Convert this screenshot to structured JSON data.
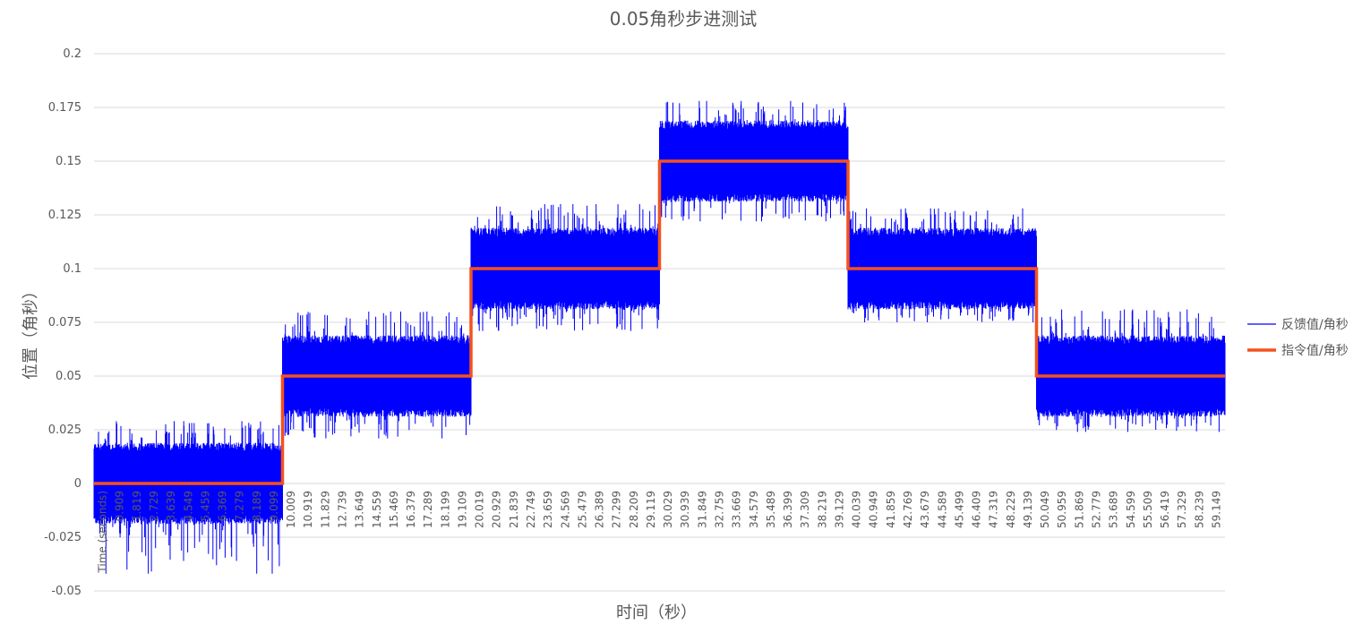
{
  "chart_data": {
    "type": "line",
    "title": "0.05角秒步进测试",
    "xlabel": "时间（秒）",
    "ylabel": "位置（角秒）",
    "ylim": [
      -0.05,
      0.2
    ],
    "yticks": [
      "0.2",
      "0.175",
      "0.15",
      "0.125",
      "0.1",
      "0.075",
      "0.05",
      "0.025",
      "0",
      "-0.025",
      "-0.05"
    ],
    "xlim": [
      0,
      60
    ],
    "xtick_labels": [
      "Time (seconds)",
      "0.909",
      "1.819",
      "2.729",
      "3.639",
      "4.549",
      "5.459",
      "6.369",
      "7.279",
      "8.189",
      "9.099",
      "10.009",
      "10.919",
      "11.829",
      "12.739",
      "13.649",
      "14.559",
      "15.469",
      "16.379",
      "17.289",
      "18.199",
      "19.109",
      "20.019",
      "20.929",
      "21.839",
      "22.749",
      "23.659",
      "24.569",
      "25.479",
      "26.389",
      "27.299",
      "28.209",
      "29.119",
      "30.029",
      "30.939",
      "31.849",
      "32.759",
      "33.669",
      "34.579",
      "35.489",
      "36.399",
      "37.309",
      "38.219",
      "39.129",
      "40.039",
      "40.949",
      "41.859",
      "42.769",
      "43.679",
      "44.589",
      "45.499",
      "46.409",
      "47.319",
      "48.229",
      "49.139",
      "50.049",
      "50.959",
      "51.869",
      "52.779",
      "53.689",
      "54.599",
      "55.509",
      "56.419",
      "57.329",
      "58.239",
      "59.149"
    ],
    "grid": true,
    "legend_position": "right",
    "series": [
      {
        "name": "反馈值/角秒",
        "color": "#0000ff",
        "kind": "noisy_step",
        "segments": [
          {
            "x0": 0,
            "x1": 10,
            "mean": 0.0,
            "band_low": -0.017,
            "band_high": 0.017,
            "spike_low": -0.042,
            "spike_high": 0.029
          },
          {
            "x0": 10,
            "x1": 20,
            "mean": 0.05,
            "band_low": 0.033,
            "band_high": 0.067,
            "spike_low": 0.021,
            "spike_high": 0.08
          },
          {
            "x0": 20,
            "x1": 30,
            "mean": 0.1,
            "band_low": 0.083,
            "band_high": 0.117,
            "spike_low": 0.071,
            "spike_high": 0.13
          },
          {
            "x0": 30,
            "x1": 40,
            "mean": 0.15,
            "band_low": 0.133,
            "band_high": 0.167,
            "spike_low": 0.122,
            "spike_high": 0.178
          },
          {
            "x0": 40,
            "x1": 50,
            "mean": 0.1,
            "band_low": 0.083,
            "band_high": 0.117,
            "spike_low": 0.075,
            "spike_high": 0.128
          },
          {
            "x0": 50,
            "x1": 60,
            "mean": 0.05,
            "band_low": 0.033,
            "band_high": 0.067,
            "spike_low": 0.024,
            "spike_high": 0.081
          }
        ]
      },
      {
        "name": "指令值/角秒",
        "color": "#f4511e",
        "kind": "step",
        "x": [
          0,
          10,
          10,
          20,
          20,
          30,
          30,
          40,
          40,
          50,
          50,
          60
        ],
        "y": [
          0,
          0,
          0.05,
          0.05,
          0.1,
          0.1,
          0.15,
          0.15,
          0.1,
          0.1,
          0.05,
          0.05
        ]
      }
    ]
  }
}
